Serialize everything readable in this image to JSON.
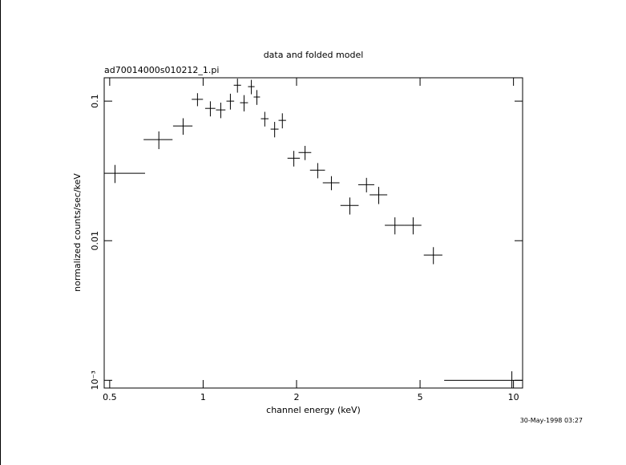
{
  "chart_data": {
    "type": "scatter",
    "title": "data and folded model",
    "subtitle": "ad70014000s010212_1.pi",
    "xlabel": "channel energy (keV)",
    "ylabel": "normalized counts/sec/keV",
    "timestamp": "30-May-1998 03:27",
    "xscale": "log",
    "yscale": "log",
    "xlim": [
      0.48,
      10.7
    ],
    "ylim": [
      0.00088,
      0.147
    ],
    "xticks": [
      0.5,
      1,
      2,
      5,
      10
    ],
    "yticks": [
      0.1,
      0.01,
      {
        "value": 0.001,
        "label": "10⁻³"
      }
    ],
    "series": [
      {
        "name": "data",
        "color": "#000000",
        "x": [
          0.52,
          0.72,
          0.862,
          0.959,
          1.055,
          1.14,
          1.224,
          1.29,
          1.355,
          1.43,
          1.49,
          1.58,
          1.7,
          1.8,
          1.96,
          2.13,
          2.34,
          2.59,
          2.97,
          3.36,
          3.68,
          4.15,
          4.75,
          5.52,
          9.88
        ],
        "xerr": [
          0.13,
          0.077,
          0.062,
          0.04,
          0.04,
          0.04,
          0.035,
          0.035,
          0.04,
          0.035,
          0.035,
          0.045,
          0.05,
          0.05,
          0.09,
          0.1,
          0.13,
          0.16,
          0.2,
          0.2,
          0.24,
          0.3,
          0.3,
          0.38,
          3.9
        ],
        "values": [
          0.0304,
          0.053,
          0.0664,
          0.103,
          0.0887,
          0.0865,
          0.1,
          0.13,
          0.0974,
          0.127,
          0.107,
          0.0748,
          0.063,
          0.0728,
          0.039,
          0.0428,
          0.032,
          0.026,
          0.0179,
          0.0252,
          0.0213,
          0.0129,
          0.0129,
          0.00789,
          0.001
        ],
        "yerr": [
          0.0045,
          0.0077,
          0.009,
          0.011,
          0.011,
          0.011,
          0.013,
          0.015,
          0.013,
          0.015,
          0.013,
          0.009,
          0.008,
          0.009,
          0.005,
          0.005,
          0.004,
          0.003,
          0.0025,
          0.003,
          0.003,
          0.0018,
          0.0018,
          0.0011,
          0.00016
        ]
      }
    ]
  }
}
